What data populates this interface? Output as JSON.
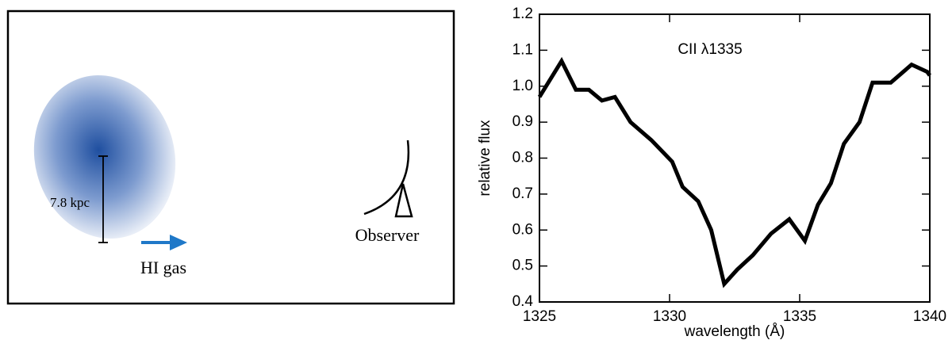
{
  "diagram": {
    "scale_label": "7.8 kpc",
    "gas_label": "HI gas",
    "observer_label": "Observer"
  },
  "chart_data": {
    "type": "line",
    "annotation": "CII λ1335",
    "x_label": "wavelength (Å)",
    "y_label": "relative flux",
    "x": [
      1325,
      1325.85,
      1326.4,
      1326.9,
      1327.4,
      1327.9,
      1328.5,
      1329.3,
      1330.1,
      1330.5,
      1331.1,
      1331.6,
      1332.1,
      1332.6,
      1333.2,
      1333.9,
      1334.6,
      1335.2,
      1335.7,
      1336.2,
      1336.7,
      1337.3,
      1337.8,
      1338.5,
      1339.3,
      1339.9,
      1340
    ],
    "series": [
      {
        "color": "#000000",
        "values": [
          0.97,
          1.07,
          0.99,
          0.99,
          0.96,
          0.97,
          0.9,
          0.85,
          0.79,
          0.72,
          0.68,
          0.6,
          0.45,
          0.49,
          0.53,
          0.59,
          0.63,
          0.57,
          0.67,
          0.73,
          0.84,
          0.9,
          1.01,
          1.01,
          1.06,
          1.04,
          1.03
        ]
      }
    ],
    "xlim": [
      1325,
      1340
    ],
    "xticks": [
      1325,
      1330,
      1335,
      1340
    ],
    "ylim": [
      0.4,
      1.2
    ],
    "yticks": [
      0.4,
      0.5,
      0.6,
      0.7,
      0.8,
      0.9,
      {
        "value": 1,
        "label": "1.0"
      },
      1.1,
      1.2
    ]
  }
}
